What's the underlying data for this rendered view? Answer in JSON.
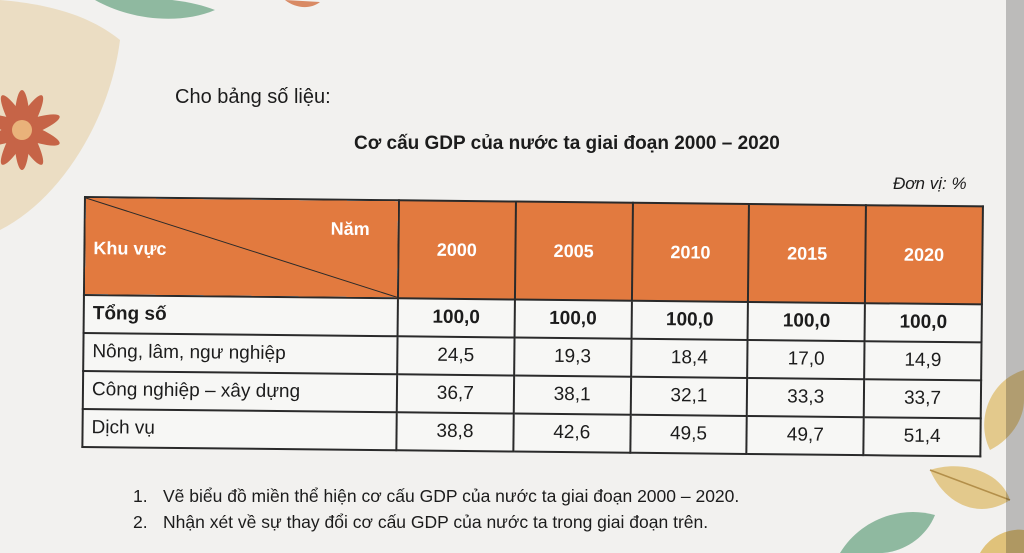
{
  "intro": "Cho bảng số liệu:",
  "title": "Cơ cấu GDP của nước ta giai đoạn 2000 – 2020",
  "unit": "Đơn vị: %",
  "table": {
    "header_year": "Năm",
    "header_region": "Khu vực",
    "years": [
      "2000",
      "2005",
      "2010",
      "2015",
      "2020"
    ],
    "rows": [
      {
        "label": "Tổng số",
        "values": [
          "100,0",
          "100,0",
          "100,0",
          "100,0",
          "100,0"
        ]
      },
      {
        "label": "Nông, lâm, ngư nghiệp",
        "values": [
          "24,5",
          "19,3",
          "18,4",
          "17,0",
          "14,9"
        ]
      },
      {
        "label": "Công nghiệp – xây dựng",
        "values": [
          "36,7",
          "38,1",
          "32,1",
          "33,3",
          "33,7"
        ]
      },
      {
        "label": "Dịch vụ",
        "values": [
          "38,8",
          "42,6",
          "49,5",
          "49,7",
          "51,4"
        ]
      }
    ]
  },
  "questions": [
    {
      "num": "1.",
      "text": "Vẽ biểu đồ miền thể hiện cơ cấu GDP của nước ta giai đoạn 2000 – 2020."
    },
    {
      "num": "2.",
      "text": "Nhận xét về sự thay đổi cơ cấu GDP của nước ta trong giai đoạn trên."
    }
  ],
  "colors": {
    "header_bg": "#e27a3f",
    "header_text": "#ffffff",
    "leaf_green": "#8fb9a0",
    "flower": "#c2573a"
  }
}
